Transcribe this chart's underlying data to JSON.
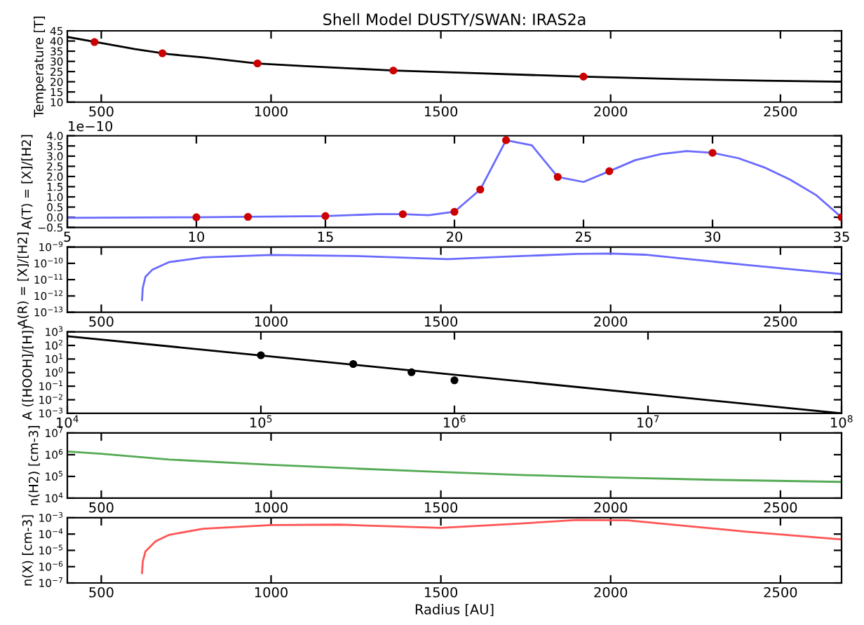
{
  "chart_data": [
    {
      "type": "line",
      "title": "Shell Model DUSTY/SWAN: IRAS2a",
      "ylabel": "Temperature [T]",
      "xlim": [
        400,
        2680
      ],
      "xticks": [
        500,
        1000,
        1500,
        2000,
        2500
      ],
      "ylim": [
        10,
        45
      ],
      "yticks": [
        10,
        15,
        20,
        25,
        30,
        35,
        40,
        45
      ],
      "series": [
        {
          "color": "#000000",
          "x": [
            400,
            500,
            600,
            700,
            800,
            960,
            1100,
            1360,
            1600,
            1920,
            2200,
            2450,
            2680
          ],
          "values": [
            42,
            39,
            36,
            33.5,
            32,
            29,
            27.7,
            25.5,
            24.2,
            22.5,
            21.3,
            20.5,
            20
          ]
        },
        {
          "type": "scatter",
          "marker": "circle",
          "color": "#cc0000",
          "x": [
            480,
            680,
            960,
            1360,
            1920
          ],
          "values": [
            39.5,
            34,
            29,
            25.5,
            22.5
          ]
        }
      ]
    },
    {
      "type": "line",
      "ylabel": "A(T) = [X]/[H2]",
      "annotations": [
        "1e−10"
      ],
      "xlim": [
        5,
        35
      ],
      "xticks": [
        5,
        10,
        15,
        20,
        25,
        30,
        35
      ],
      "ylim": [
        -0.5,
        4.0
      ],
      "yticks": [
        {
          "value": -0.5,
          "label": "−0.5"
        },
        {
          "value": 0,
          "label": "0.0"
        },
        {
          "value": 0.5,
          "label": "0.5"
        },
        {
          "value": 1,
          "label": "1.0"
        },
        {
          "value": 1.5,
          "label": "1.5"
        },
        {
          "value": 2,
          "label": "2.0"
        },
        {
          "value": 2.5,
          "label": "2.5"
        },
        {
          "value": 3,
          "label": "3.0"
        },
        {
          "value": 3.5,
          "label": "3.5"
        },
        {
          "value": 4,
          "label": "4.0"
        }
      ],
      "series": [
        {
          "color": "#6a6aff",
          "x": [
            5,
            10,
            12,
            15,
            17,
            18,
            19,
            20,
            21,
            22,
            23,
            24,
            25,
            26,
            27,
            28,
            29,
            30,
            31,
            32,
            33,
            34,
            35
          ],
          "values": [
            -0.03,
            0.0,
            0.02,
            0.06,
            0.15,
            0.15,
            0.1,
            0.27,
            1.36,
            3.78,
            3.53,
            1.98,
            1.73,
            2.26,
            2.8,
            3.1,
            3.25,
            3.16,
            2.9,
            2.45,
            1.85,
            1.1,
            0.0
          ]
        },
        {
          "type": "scatter",
          "marker": "circle",
          "color": "#cc0000",
          "x": [
            10,
            12,
            15,
            18,
            20,
            21,
            22,
            24,
            26,
            30,
            35
          ],
          "values": [
            0.0,
            0.02,
            0.06,
            0.15,
            0.27,
            1.36,
            3.78,
            1.98,
            2.26,
            3.16,
            0.0
          ]
        }
      ]
    },
    {
      "type": "line",
      "ylabel": "A(R) = [X]/[H2]",
      "log": "y",
      "xlim": [
        400,
        2680
      ],
      "xticks": [
        500,
        1000,
        1500,
        2000,
        2500
      ],
      "ylim": [
        1e-13,
        1e-09
      ],
      "yticks": [
        {
          "value": 1e-13,
          "label": "10$^{−13}$"
        },
        {
          "value": 1e-12,
          "label": "10$^{−12}$"
        },
        {
          "value": 1e-11,
          "label": "10$^{−11}$"
        },
        {
          "value": 1e-10,
          "label": "10$^{−10}$"
        },
        {
          "value": 1e-09,
          "label": "10$^{−9}$"
        }
      ],
      "series": [
        {
          "color": "#6a6aff",
          "x": [
            620,
            622,
            630,
            650,
            700,
            800,
            1000,
            1250,
            1520,
            1700,
            1900,
            2000,
            2100,
            2200,
            2400,
            2680
          ],
          "values": [
            5.6e-13,
            3e-12,
            1.5e-11,
            4e-11,
            1.2e-10,
            2.3e-10,
            3.3e-10,
            2.8e-10,
            1.8e-10,
            2.6e-10,
            3.8e-10,
            4e-10,
            3.4e-10,
            2.1e-10,
            8e-11,
            2.2e-11
          ]
        }
      ]
    },
    {
      "type": "line",
      "ylabel": "A ([HOOH]/[H])",
      "log": "xy",
      "xlim": [
        10000.0,
        100000000.0
      ],
      "ylim": [
        0.001,
        1000.0
      ],
      "xticks": [
        {
          "value": 10000.0,
          "label": "10$^{4}$"
        },
        {
          "value": 100000.0,
          "label": "10$^{5}$"
        },
        {
          "value": 1000000.0,
          "label": "10$^{6}$"
        },
        {
          "value": 10000000.0,
          "label": "10$^{7}$"
        },
        {
          "value": 100000000.0,
          "label": "10$^{8}$"
        }
      ],
      "yticks": [
        {
          "value": 0.001,
          "label": "10$^{−3}$"
        },
        {
          "value": 0.01,
          "label": "10$^{−2}$"
        },
        {
          "value": 0.1,
          "label": "10$^{−1}$"
        },
        {
          "value": 1,
          "label": "10$^{0}$"
        },
        {
          "value": 10,
          "label": "10$^{1}$"
        },
        {
          "value": 100,
          "label": "10$^{2}$"
        },
        {
          "value": 1000,
          "label": "10$^{3}$"
        }
      ],
      "series": [
        {
          "color": "#000000",
          "x": [
            10000.0,
            100000000.0
          ],
          "values": [
            480,
            0.001
          ]
        },
        {
          "type": "scatter",
          "marker": "circle",
          "color": "#000000",
          "x": [
            100000.0,
            300000.0,
            600000.0,
            1000000.0
          ],
          "values": [
            19,
            4.3,
            1.07,
            0.27
          ]
        }
      ]
    },
    {
      "type": "line",
      "ylabel": "n(H2) [cm-3]",
      "log": "y",
      "xlim": [
        400,
        2680
      ],
      "xticks": [
        500,
        1000,
        1500,
        2000,
        2500
      ],
      "ylim": [
        10000.0,
        10000000.0
      ],
      "yticks": [
        {
          "value": 10000.0,
          "label": "10$^{4}$"
        },
        {
          "value": 100000.0,
          "label": "10$^{5}$"
        },
        {
          "value": 1000000.0,
          "label": "10$^{6}$"
        },
        {
          "value": 10000000.0,
          "label": "10$^{7}$"
        }
      ],
      "series": [
        {
          "color": "#55aa55",
          "x": [
            400,
            500,
            700,
            1000,
            1250,
            1500,
            1750,
            2000,
            2300,
            2680
          ],
          "values": [
            1400000.0,
            1100000.0,
            600000.0,
            340000.0,
            230000.0,
            160000.0,
            115000.0,
            90000.0,
            70000.0,
            56000.0
          ]
        }
      ]
    },
    {
      "type": "line",
      "ylabel": "n(X) [cm-3]",
      "xlabel": "Radius [AU]",
      "log": "y",
      "xlim": [
        400,
        2680
      ],
      "xticks": [
        500,
        1000,
        1500,
        2000,
        2500
      ],
      "ylim": [
        1e-07,
        0.001
      ],
      "yticks": [
        {
          "value": 1e-07,
          "label": "10$^{−7}$"
        },
        {
          "value": 1e-06,
          "label": "10$^{−6}$"
        },
        {
          "value": 1e-05,
          "label": "10$^{−5}$"
        },
        {
          "value": 0.0001,
          "label": "10$^{−4}$"
        },
        {
          "value": 0.001,
          "label": "10$^{−3}$"
        }
      ],
      "series": [
        {
          "color": "#ff5555",
          "x": [
            620,
            622,
            630,
            660,
            700,
            800,
            1000,
            1200,
            1500,
            1700,
            1900,
            2050,
            2200,
            2400,
            2680
          ],
          "values": [
            4e-07,
            2e-06,
            8.7e-06,
            3.6e-05,
            9e-05,
            0.00021,
            0.00036,
            0.00038,
            0.00024,
            0.0004,
            0.00073,
            0.0007,
            0.00035,
            0.00014,
            4.7e-05
          ]
        }
      ]
    }
  ]
}
